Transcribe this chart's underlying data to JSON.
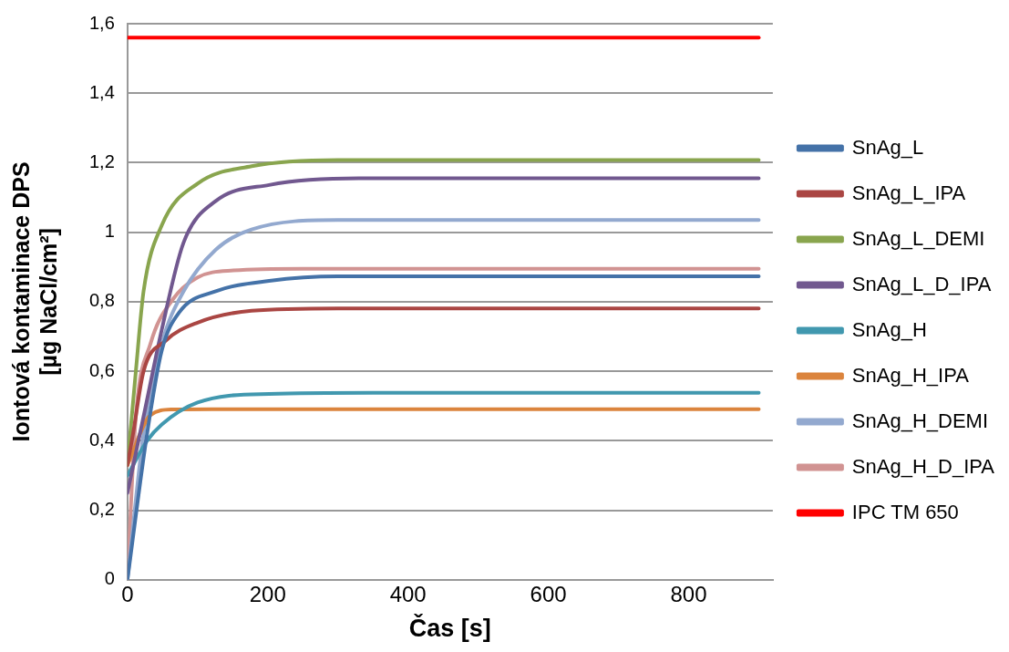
{
  "chart_data": {
    "type": "line",
    "xlabel": "Čas [s]",
    "ylabel": "Iontová kontaminace DPS\n[µg NaCl/cm²]",
    "xlim": [
      0,
      920
    ],
    "xticks": [
      0,
      200,
      400,
      600,
      800
    ],
    "ylim": [
      0,
      1.6
    ],
    "yticks": [
      0,
      {
        "value": 0.2,
        "label": "0,2"
      },
      {
        "value": 0.4,
        "label": "0,4"
      },
      {
        "value": 0.6,
        "label": "0,6"
      },
      {
        "value": 0.8,
        "label": "0,8"
      },
      1,
      {
        "value": 1.2,
        "label": "1,2"
      },
      {
        "value": 1.4,
        "label": "1,4"
      },
      {
        "value": 1.6,
        "label": "1,6"
      }
    ],
    "grid": "y",
    "legend": "right",
    "marker": "none",
    "line_style": "solid",
    "series": [
      {
        "name": "SnAg_L",
        "color": "#4472a8",
        "x": [
          0,
          28,
          49,
          74,
          126,
          202,
          300,
          900
        ],
        "values": [
          0,
          0.42,
          0.66,
          0.77,
          0.83,
          0.86,
          0.873,
          0.873
        ]
      },
      {
        "name": "SnAg_L_IPA",
        "color": "#aa4643",
        "x": [
          0,
          8,
          23,
          54,
          100,
          177,
          300,
          900
        ],
        "values": [
          0.33,
          0.42,
          0.6,
          0.687,
          0.74,
          0.774,
          0.781,
          0.781
        ]
      },
      {
        "name": "SnAg_L_DEMI",
        "color": "#89a54e",
        "x": [
          0,
          12,
          23,
          49,
          100,
          177,
          300,
          900
        ],
        "values": [
          0.33,
          0.6,
          0.83,
          1.02,
          1.14,
          1.19,
          1.208,
          1.208
        ]
      },
      {
        "name": "SnAg_L_D_IPA",
        "color": "#71588f",
        "x": [
          0,
          23,
          49,
          80,
          126,
          202,
          330,
          900
        ],
        "values": [
          0.25,
          0.47,
          0.72,
          0.97,
          1.09,
          1.136,
          1.155,
          1.155
        ]
      },
      {
        "name": "SnAg_H",
        "color": "#4198af",
        "x": [
          0,
          28,
          49,
          100,
          202,
          350,
          900
        ],
        "values": [
          0.3,
          0.4,
          0.447,
          0.51,
          0.535,
          0.538,
          0.538
        ]
      },
      {
        "name": "SnAg_H_IPA",
        "color": "#db843d",
        "x": [
          0,
          33,
          64,
          120,
          900
        ],
        "values": [
          0.33,
          0.474,
          0.49,
          0.491,
          0.491
        ]
      },
      {
        "name": "SnAg_H_DEMI",
        "color": "#93a9cf",
        "x": [
          0,
          23,
          49,
          80,
          126,
          177,
          300,
          900
        ],
        "values": [
          0,
          0.42,
          0.68,
          0.83,
          0.95,
          1.008,
          1.035,
          1.035
        ]
      },
      {
        "name": "SnAg_H_D_IPA",
        "color": "#d19392",
        "x": [
          0,
          12,
          33,
          64,
          100,
          151,
          250,
          900
        ],
        "values": [
          0,
          0.47,
          0.68,
          0.805,
          0.87,
          0.89,
          0.895,
          0.895
        ]
      },
      {
        "name": "IPC TM 650",
        "color": "#ff0000",
        "x": [
          0,
          900
        ],
        "values": [
          1.56,
          1.56
        ]
      }
    ]
  }
}
